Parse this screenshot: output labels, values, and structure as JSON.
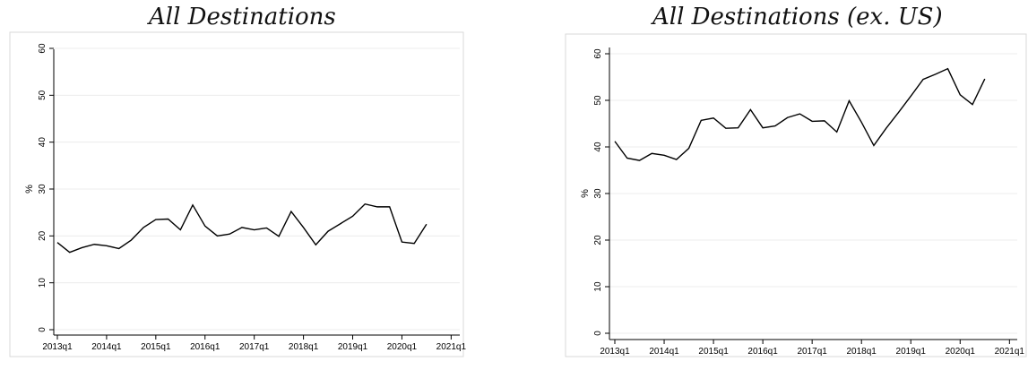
{
  "chart_data": [
    {
      "type": "line",
      "title": "All Destinations",
      "xlabel": "",
      "ylabel": "%",
      "ylim": [
        0,
        60
      ],
      "yticks": [
        0,
        10,
        20,
        30,
        40,
        50,
        60
      ],
      "xticks": [
        "2013q1",
        "2014q1",
        "2015q1",
        "2016q1",
        "2017q1",
        "2018q1",
        "2019q1",
        "2020q1",
        "2021q1"
      ],
      "grid": true,
      "x": [
        "2013q1",
        "2013q2",
        "2013q3",
        "2013q4",
        "2014q1",
        "2014q2",
        "2014q3",
        "2014q4",
        "2015q1",
        "2015q2",
        "2015q3",
        "2015q4",
        "2016q1",
        "2016q2",
        "2016q3",
        "2016q4",
        "2017q1",
        "2017q2",
        "2017q3",
        "2017q4",
        "2018q1",
        "2018q2",
        "2018q3",
        "2018q4",
        "2019q1",
        "2019q2",
        "2019q3",
        "2019q4",
        "2020q1",
        "2020q2",
        "2020q3"
      ],
      "series": [
        {
          "values": [
            18.6,
            16.5,
            17.5,
            18.2,
            17.9,
            17.3,
            19.1,
            21.8,
            23.5,
            23.6,
            21.3,
            26.6,
            22.1,
            20.0,
            20.4,
            21.8,
            21.3,
            21.7,
            19.9,
            25.2,
            21.8,
            18.1,
            21.0,
            22.6,
            24.2,
            26.8,
            26.2,
            26.2,
            18.7,
            18.4,
            22.5
          ]
        }
      ]
    },
    {
      "type": "line",
      "title": "All Destinations (ex. US)",
      "xlabel": "",
      "ylabel": "%",
      "ylim": [
        0,
        60
      ],
      "yticks": [
        0,
        10,
        20,
        30,
        40,
        50,
        60
      ],
      "xticks": [
        "2013q1",
        "2014q1",
        "2015q1",
        "2016q1",
        "2017q1",
        "2018q1",
        "2019q1",
        "2020q1",
        "2021q1"
      ],
      "grid": true,
      "x": [
        "2013q1",
        "2013q2",
        "2013q3",
        "2013q4",
        "2014q1",
        "2014q2",
        "2014q3",
        "2014q4",
        "2015q1",
        "2015q2",
        "2015q3",
        "2015q4",
        "2016q1",
        "2016q2",
        "2016q3",
        "2016q4",
        "2017q1",
        "2017q2",
        "2017q3",
        "2017q4",
        "2018q1",
        "2018q2",
        "2018q3",
        "2018q4",
        "2019q1",
        "2019q2",
        "2019q3",
        "2019q4",
        "2020q1",
        "2020q2",
        "2020q3"
      ],
      "series": [
        {
          "values": [
            41.2,
            37.6,
            37.1,
            38.6,
            38.2,
            37.3,
            39.7,
            45.7,
            46.2,
            44.0,
            44.1,
            48.0,
            44.1,
            44.5,
            46.3,
            47.1,
            45.5,
            45.6,
            43.2,
            49.9,
            45.3,
            40.3,
            44.0,
            47.4,
            50.9,
            54.5,
            55.6,
            56.8,
            51.2,
            49.1,
            54.6
          ]
        }
      ]
    }
  ]
}
